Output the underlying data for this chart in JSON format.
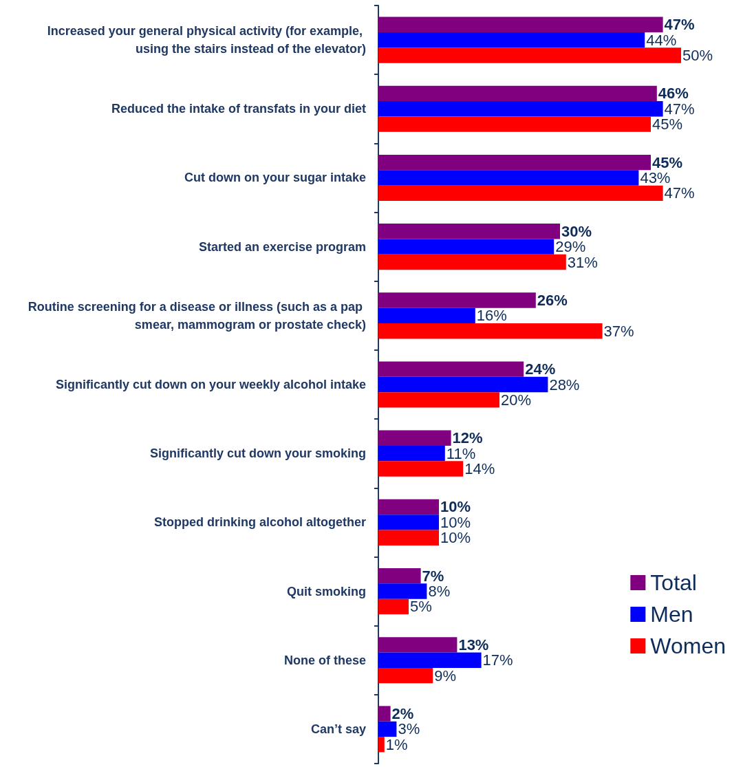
{
  "chart_data": {
    "type": "bar",
    "orientation": "horizontal",
    "categories": [
      "Increased your general physical activity (for example, using the stairs instead of the elevator)",
      "Reduced the intake of transfats in your diet",
      "Cut down on your sugar intake",
      "Started an exercise program",
      "Routine screening for a disease or illness (such as a pap smear, mammogram or prostate check)",
      "Significantly cut down on your weekly alcohol intake",
      "Significantly cut down your smoking",
      "Stopped drinking alcohol altogether",
      "Quit smoking",
      "None of these",
      "Can’t say"
    ],
    "series": [
      {
        "name": "Total",
        "color": "#800080",
        "values": [
          47,
          46,
          45,
          30,
          26,
          24,
          12,
          10,
          7,
          13,
          2
        ],
        "value_labels": [
          "47%",
          "46%",
          "45%",
          "30%",
          "26%",
          "24%",
          "12%",
          "10%",
          "7%",
          "13%",
          "2%"
        ]
      },
      {
        "name": "Men",
        "color": "#0000ff",
        "values": [
          44,
          47,
          43,
          29,
          16,
          28,
          11,
          10,
          8,
          17,
          3
        ],
        "value_labels": [
          "44%",
          "47%",
          "43%",
          "29%",
          "16%",
          "28%",
          "11%",
          "10%",
          "8%",
          "17%",
          "3%"
        ]
      },
      {
        "name": "Women",
        "color": "#ff0000",
        "values": [
          50,
          45,
          47,
          31,
          37,
          20,
          14,
          10,
          5,
          9,
          1
        ],
        "value_labels": [
          "50%",
          "45%",
          "47%",
          "31%",
          "37%",
          "20%",
          "14%",
          "10%",
          "5%",
          "9%",
          "1%"
        ]
      }
    ],
    "xlim": [
      0,
      50
    ],
    "tick_labels": "y",
    "grid": false,
    "legend": "bottom right"
  }
}
